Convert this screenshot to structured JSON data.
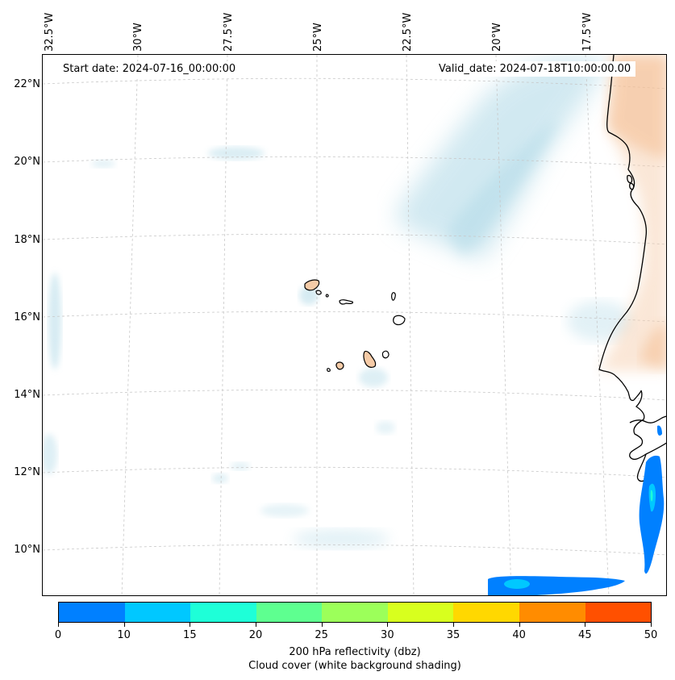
{
  "map": {
    "start_date_text": "Start date: 2024-07-16_00:00:00",
    "valid_date_text": "Valid_date: 2024-07-18T10:00:00.00",
    "lon_labels": [
      "32.5°W",
      "30°W",
      "27.5°W",
      "25°W",
      "22.5°W",
      "20°W",
      "17.5°W"
    ],
    "lat_labels": [
      "22°N",
      "20°N",
      "18°N",
      "16°N",
      "14°N",
      "12°N",
      "10°N"
    ],
    "colors": {
      "coastline": "#000000",
      "land": "#f5cba7",
      "cloud": "#add8e6",
      "gridline": "#c8c8c8"
    }
  },
  "colorbar": {
    "ticks": [
      "0",
      "10",
      "15",
      "20",
      "25",
      "30",
      "35",
      "40",
      "45",
      "50"
    ],
    "colors": [
      "#0080ff",
      "#00c8ff",
      "#1effd8",
      "#5eff90",
      "#9cff5a",
      "#d8ff1e",
      "#ffd800",
      "#ff8c00",
      "#ff5000"
    ],
    "caption_line1": "200 hPa reflectivity (dbz)",
    "caption_line2": "Cloud cover (white background shading)"
  }
}
